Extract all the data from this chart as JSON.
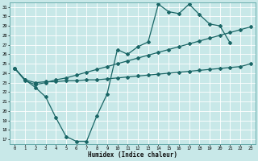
{
  "xlabel": "Humidex (Indice chaleur)",
  "bg_color": "#c8e8e8",
  "grid_color": "#ffffff",
  "line_color": "#1a6666",
  "xlim": [
    -0.5,
    23.5
  ],
  "ylim": [
    16.5,
    31.5
  ],
  "xticks": [
    0,
    1,
    2,
    3,
    4,
    5,
    6,
    7,
    8,
    9,
    10,
    11,
    12,
    13,
    14,
    15,
    16,
    17,
    18,
    19,
    20,
    21,
    22,
    23
  ],
  "yticks": [
    17,
    18,
    19,
    20,
    21,
    22,
    23,
    24,
    25,
    26,
    27,
    28,
    29,
    30,
    31
  ],
  "s1_x": [
    0,
    1,
    2,
    3,
    4,
    5,
    6,
    7,
    8,
    9,
    10,
    11,
    12,
    13,
    14,
    15,
    16,
    17,
    18,
    19,
    20,
    21
  ],
  "s1_y": [
    24.5,
    23.3,
    22.5,
    21.5,
    19.3,
    17.3,
    16.8,
    16.8,
    19.5,
    21.8,
    26.5,
    26.0,
    26.8,
    27.3,
    31.3,
    30.5,
    30.3,
    31.3,
    30.2,
    29.2,
    29.0,
    27.2
  ],
  "s2_x": [
    0,
    1,
    2,
    3,
    4,
    5,
    6,
    7,
    8,
    9,
    10,
    11,
    12,
    13,
    14,
    15,
    16,
    17,
    18,
    19,
    20,
    21,
    22,
    23
  ],
  "s2_y": [
    24.5,
    23.3,
    23.0,
    23.1,
    23.1,
    23.2,
    23.2,
    23.3,
    23.3,
    23.4,
    23.5,
    23.6,
    23.7,
    23.8,
    23.9,
    24.0,
    24.1,
    24.2,
    24.3,
    24.4,
    24.5,
    24.6,
    24.7,
    25.0
  ],
  "s3_x": [
    0,
    1,
    2,
    3,
    4,
    5,
    6,
    7,
    8,
    9,
    10,
    11,
    12,
    13,
    14,
    15,
    16,
    17,
    18,
    19,
    20,
    21,
    22,
    23
  ],
  "s3_y": [
    24.5,
    23.2,
    22.8,
    23.0,
    23.3,
    23.5,
    23.8,
    24.1,
    24.4,
    24.7,
    25.0,
    25.3,
    25.6,
    25.9,
    26.2,
    26.5,
    26.8,
    27.1,
    27.4,
    27.7,
    28.0,
    28.3,
    28.6,
    28.9
  ]
}
